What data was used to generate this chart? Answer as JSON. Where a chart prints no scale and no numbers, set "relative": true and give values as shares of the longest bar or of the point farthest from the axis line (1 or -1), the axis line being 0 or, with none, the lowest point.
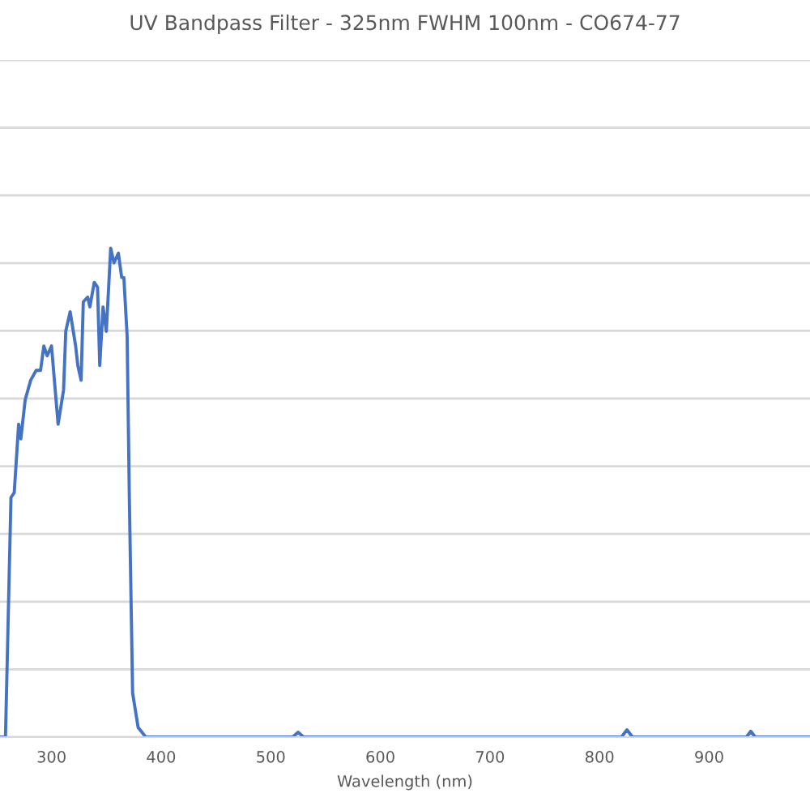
{
  "chart_data": {
    "type": "line",
    "title": "UV Bandpass Filter - 325nm FWHM 100nm - CO674-77",
    "xlabel": "Wavelength (nm)",
    "relative": true,
    "grid": "y",
    "legend": false,
    "xlim": [
      253,
      992
    ],
    "xticks": [
      300,
      400,
      500,
      600,
      700,
      800,
      900
    ],
    "series": [
      {
        "color": "#4472c4",
        "x": [
          253,
          258,
          263,
          266,
          270,
          272,
          276,
          281,
          286,
          290,
          293,
          296,
          300,
          306,
          311,
          313,
          317,
          322,
          324,
          327,
          329,
          333,
          335,
          339,
          342,
          344,
          347,
          350,
          354,
          357,
          361,
          364,
          366,
          369,
          371,
          374,
          379,
          386,
          400,
          520,
          525,
          530,
          820,
          825,
          830,
          934,
          938,
          942,
          992
        ],
        "values": [
          0,
          0,
          0.49,
          0.5,
          0.64,
          0.61,
          0.69,
          0.73,
          0.75,
          0.75,
          0.8,
          0.78,
          0.8,
          0.64,
          0.71,
          0.83,
          0.87,
          0.8,
          0.76,
          0.73,
          0.89,
          0.9,
          0.88,
          0.93,
          0.92,
          0.76,
          0.88,
          0.83,
          1,
          0.97,
          0.99,
          0.94,
          0.94,
          0.82,
          0.49,
          0.09,
          0.02,
          0,
          0,
          0,
          0.01,
          0,
          0,
          0.015,
          0,
          0,
          0.012,
          0,
          0
        ]
      }
    ]
  }
}
